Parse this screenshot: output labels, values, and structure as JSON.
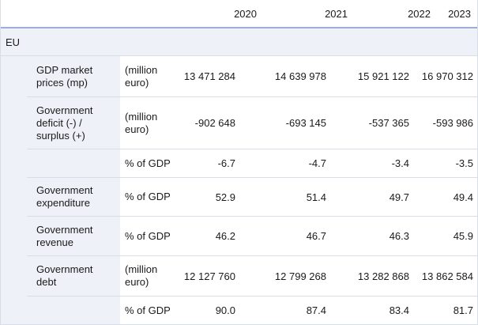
{
  "years": [
    "2020",
    "2021",
    "2022",
    "2023"
  ],
  "section": "EU",
  "rows": [
    {
      "label_lines": [
        "GDP market",
        "prices (mp)"
      ],
      "unit_lines": [
        "(million",
        "euro)"
      ],
      "values": [
        "13 471 284",
        "14 639 978",
        "15 921 122",
        "16 970 312"
      ]
    },
    {
      "label_lines": [
        "Government",
        "deficit (-) /",
        "surplus (+)"
      ],
      "unit_lines": [
        "(million",
        "euro)"
      ],
      "values": [
        "-902 648",
        "-693 145",
        "-537 365",
        "-593 986"
      ]
    },
    {
      "label_lines": [],
      "unit_lines": [
        "% of GDP"
      ],
      "values": [
        "-6.7",
        "-4.7",
        "-3.4",
        "-3.5"
      ]
    },
    {
      "label_lines": [
        "Government",
        "expenditure"
      ],
      "unit_lines": [
        "% of GDP"
      ],
      "values": [
        "52.9",
        "51.4",
        "49.7",
        "49.4"
      ]
    },
    {
      "label_lines": [
        "Government",
        "revenue"
      ],
      "unit_lines": [
        "% of GDP"
      ],
      "values": [
        "46.2",
        "46.7",
        "46.3",
        "45.9"
      ]
    },
    {
      "label_lines": [
        "Government",
        "debt"
      ],
      "unit_lines": [
        "(million",
        "euro)"
      ],
      "values": [
        "12 127 760",
        "12 799 268",
        "13 282 868",
        "13 862 584"
      ]
    },
    {
      "label_lines": [],
      "unit_lines": [
        "% of GDP"
      ],
      "values": [
        "90.0",
        "87.4",
        "83.4",
        "81.7"
      ]
    }
  ]
}
